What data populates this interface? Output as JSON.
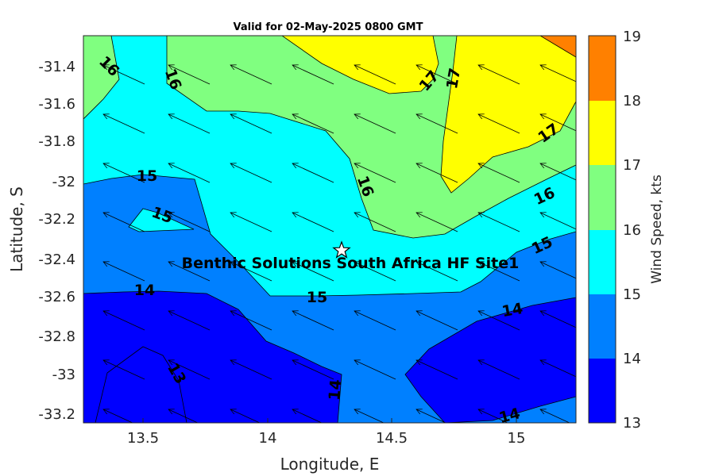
{
  "chart_data": {
    "type": "heatmap",
    "title": "Valid for 02-May-2025 0800 GMT",
    "xlabel": "Longitude, E",
    "ylabel": "Latitude, S",
    "xlim": [
      13.25,
      15.25
    ],
    "ylim": [
      -33.25,
      -31.25
    ],
    "x_ticks": [
      "13.5",
      "14",
      "14.5",
      "15"
    ],
    "y_ticks": [
      "-31.4",
      "-31.6",
      "-31.8",
      "-32",
      "-32.2",
      "-32.4",
      "-32.6",
      "-32.8",
      "-33",
      "-33.2"
    ],
    "colorbar": {
      "label": "Wind Speed, kts",
      "ticks": [
        "13",
        "14",
        "15",
        "16",
        "17",
        "18",
        "19"
      ],
      "colors": [
        "#0000ff",
        "#0080ff",
        "#00ffff",
        "#80ff80",
        "#ffff00",
        "#ff8000"
      ]
    },
    "contour_levels": [
      13,
      14,
      15,
      16,
      17,
      18
    ],
    "contour_labels": [
      "16",
      "16",
      "17",
      "17",
      "17",
      "15",
      "15",
      "16",
      "16",
      "15",
      "14",
      "15",
      "14",
      "13",
      "14",
      "14"
    ],
    "site": {
      "name": "Benthic Solutions South Africa HF Site1",
      "lon": 14.3,
      "lat": -32.36
    },
    "wind_direction": "from east-southeast (arrows point west-northwest)"
  }
}
